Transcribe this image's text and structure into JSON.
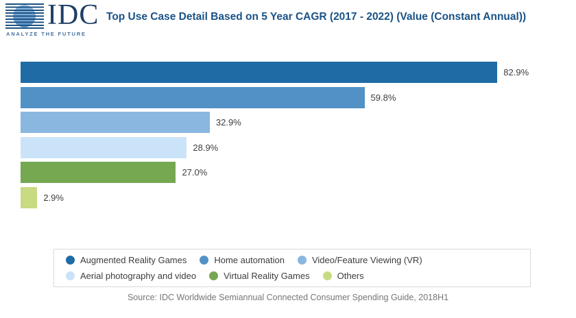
{
  "logo": {
    "name": "IDC",
    "tagline": "ANALYZE THE FUTURE"
  },
  "chart_data": {
    "type": "bar",
    "orientation": "horizontal",
    "title": "Top Use Case Detail Based on 5 Year CAGR (2017 - 2022) (Value (Constant Annual))",
    "categories": [
      "Augmented Reality Games",
      "Home automation",
      "Video/Feature Viewing (VR)",
      "Aerial photography and video",
      "Virtual Reality Games",
      "Others"
    ],
    "values": [
      82.9,
      59.8,
      32.9,
      28.9,
      27.0,
      2.9
    ],
    "value_labels": [
      "82.9%",
      "59.8%",
      "32.9%",
      "28.9%",
      "27.0%",
      "2.9%"
    ],
    "colors": [
      "#1f6ba5",
      "#5191c6",
      "#8ab7e0",
      "#cbe3f8",
      "#76a751",
      "#c8db82"
    ],
    "xlim": [
      0,
      93
    ],
    "xlabel": "",
    "ylabel": "",
    "grid": false,
    "axis_labels_visible": false,
    "legend_position": "bottom",
    "legend_rows": [
      [
        "Augmented Reality Games",
        "Home automation",
        "Video/Feature Viewing (VR)"
      ],
      [
        "Aerial photography and video",
        "Virtual Reality Games",
        "Others"
      ]
    ]
  },
  "source": "Source: IDC Worldwide Semiannual Connected Consumer Spending Guide, 2018H1",
  "brand_colors": {
    "idc_navy": "#1d3e66",
    "title_blue": "#1a5286"
  }
}
